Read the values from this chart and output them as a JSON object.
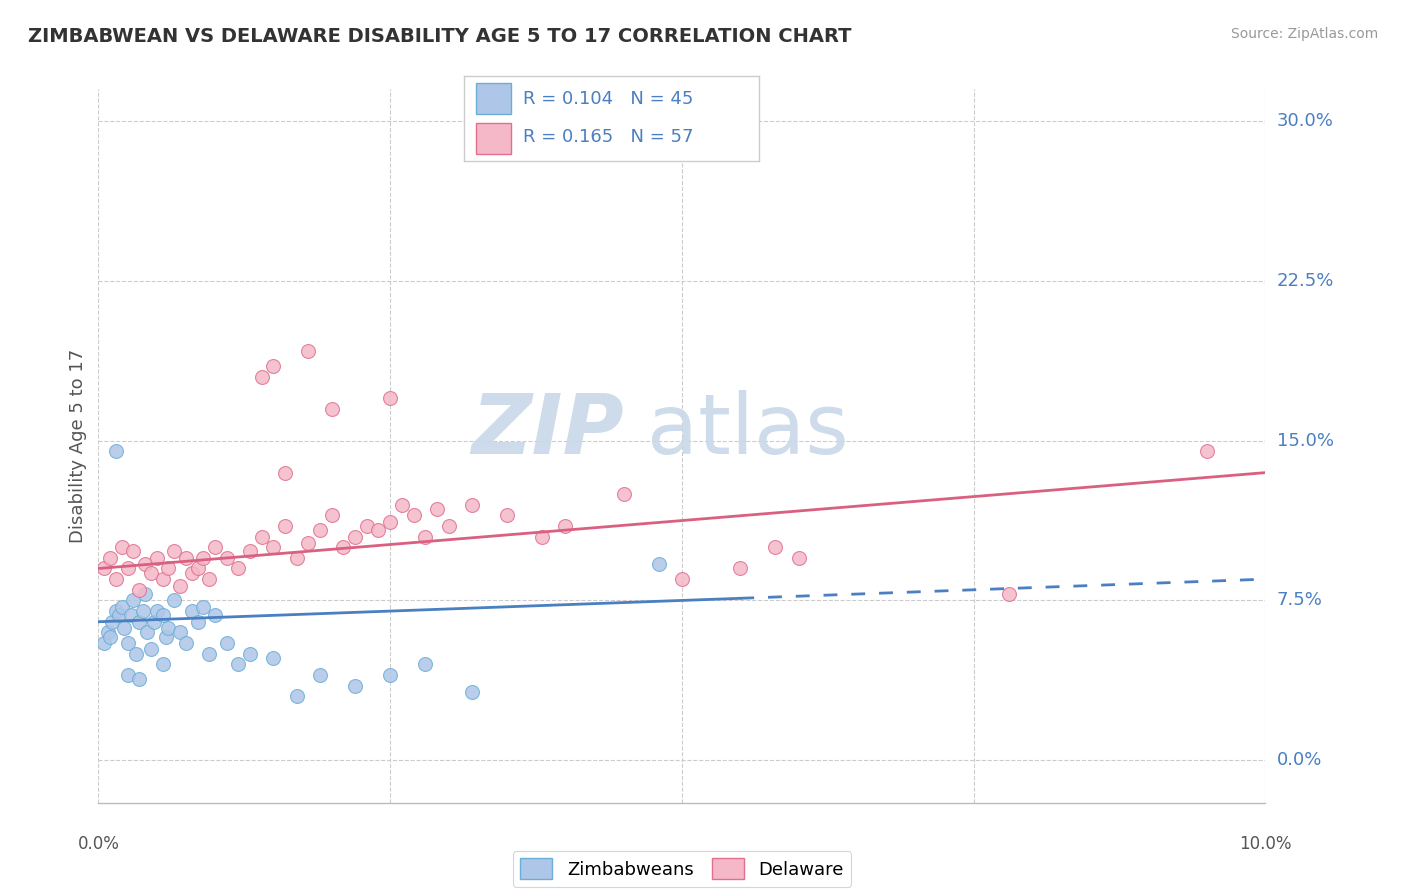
{
  "title": "ZIMBABWEAN VS DELAWARE DISABILITY AGE 5 TO 17 CORRELATION CHART",
  "source": "Source: ZipAtlas.com",
  "ylabel": "Disability Age 5 to 17",
  "ytick_vals": [
    0.0,
    7.5,
    15.0,
    22.5,
    30.0
  ],
  "ytick_labels": [
    "0.0%",
    "7.5%",
    "15.0%",
    "22.5%",
    "30.0%"
  ],
  "xlim": [
    0.0,
    10.0
  ],
  "ylim": [
    -2.0,
    31.5
  ],
  "blue_scatter_color": "#aec6e8",
  "blue_scatter_edge": "#6baed6",
  "pink_scatter_color": "#f4b8c8",
  "pink_scatter_edge": "#e07090",
  "blue_line_color": "#4a7fc1",
  "pink_line_color": "#d96080",
  "grid_color": "#cccccc",
  "watermark_color": "#c8d8e8",
  "title_color": "#333333",
  "source_color": "#999999",
  "label_color": "#555555",
  "axis_label_color": "#4a7fc1",
  "legend_text_color": "#4a7fc1"
}
